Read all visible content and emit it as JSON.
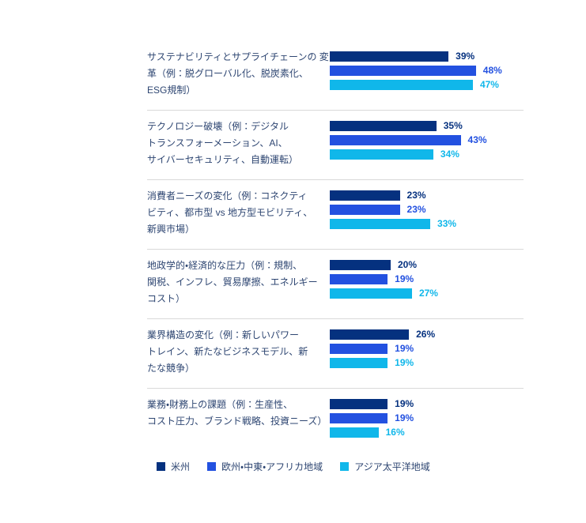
{
  "chart_data": {
    "type": "bar",
    "orientation": "horizontal",
    "title": "",
    "categories": [
      "サステナビリティとサプライチェーンの変革（例：脱グローバル化、脱炭素化、ESG規制）",
      "テクノロジー破壊（例：デジタルトランスフォーメーション、AI、サイバーセキュリティ、自動運転）",
      "消費者ニーズの変化（例：コネクティビティ、都市型 vs 地方型モビリティ、新興市場）",
      "地政学的・経済的な圧力（例：規制、関税、インフレ、貿易摩擦、エネルギーコスト）",
      "業界構造の変化（例：新しいパワートレイン、新たなビジネスモデル、新たな競争）",
      "業務・財務上の課題（例：生産性、コスト圧力、ブランド戦略、投資ニーズ）"
    ],
    "series": [
      {
        "name": "米州",
        "color": "#05317f",
        "values": [
          39,
          35,
          23,
          20,
          26,
          19
        ]
      },
      {
        "name": "欧州・中東・アフリカ地域",
        "color": "#2351e0",
        "values": [
          48,
          43,
          23,
          19,
          19,
          19
        ]
      },
      {
        "name": "アジア太平洋地域",
        "color": "#10b7ea",
        "values": [
          47,
          34,
          33,
          27,
          19,
          16
        ]
      }
    ],
    "value_suffix": "%",
    "xlim": [
      0,
      50
    ],
    "grid": false,
    "data_labels": true,
    "legend_position": "bottom"
  },
  "labels": {
    "line_wraps": [
      [
        "サステナビリティとサプライチェーンの 変",
        "革（例：脱グローバル化、脱炭素化、",
        "ESG規制）"
      ],
      [
        "テクノロジー破壊（例：デジタル",
        "トランスフォーメーション、AI、",
        "サイバーセキュリティ、自動運転）"
      ],
      [
        "消費者ニーズの変化（例：コネクティ",
        "ビティ、都市型 vs 地方型モビリティ、",
        "新興市場）"
      ],
      [
        "地政学的・経済的な圧力（例：規制、",
        "関税、インフレ、貿易摩擦、エネルギー",
        "コスト）"
      ],
      [
        "業界構造の変化（例：新しいパワー",
        "トレイン、新たなビジネスモデル、新",
        "たな競争）"
      ],
      [
        "業務・財務上の課題（例：生産性、",
        "コスト圧力、ブランド戦略、投資ニーズ）"
      ]
    ]
  },
  "legend": {
    "items": [
      {
        "label": "米州",
        "color": "#05317f"
      },
      {
        "label": "欧州・中東・アフリカ地域",
        "color": "#2351e0"
      },
      {
        "label": "アジア太平洋地域",
        "color": "#10b7ea"
      }
    ]
  },
  "colors": {
    "americas": "#05317f",
    "emea": "#2351e0",
    "apac": "#10b7ea",
    "label_text": "#2e4672",
    "separator": "#d9d9d9",
    "background": "#ffffff"
  }
}
